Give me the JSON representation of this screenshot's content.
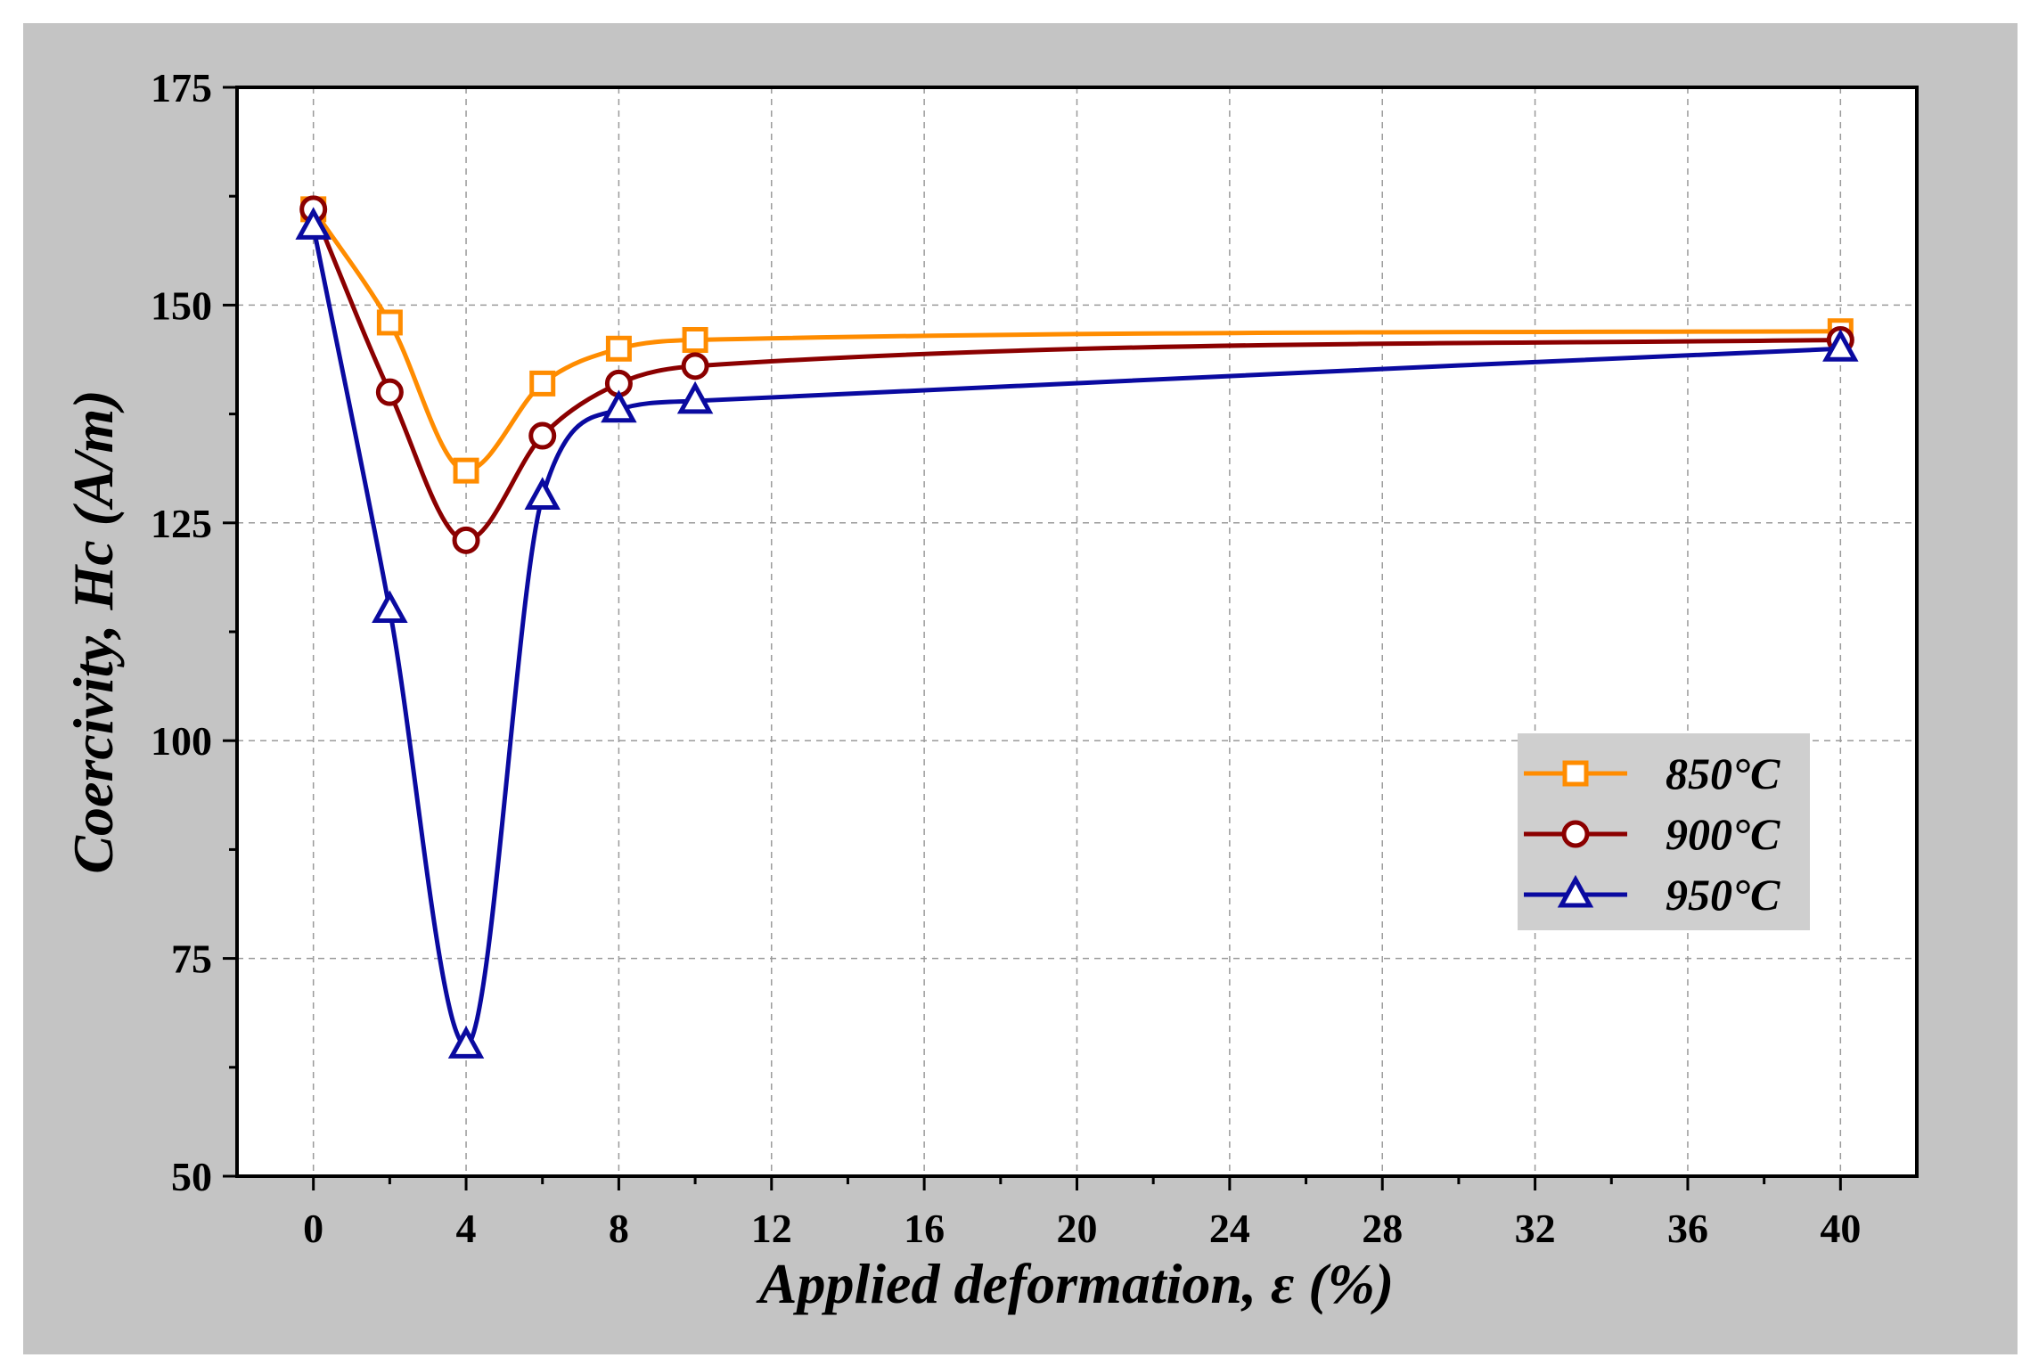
{
  "chart_data": {
    "type": "line",
    "title": "",
    "xlabel": "Applied deformation, ε (%)",
    "ylabel": "Coercivity, Hc (A/m)",
    "xlim": [
      -2,
      42
    ],
    "ylim": [
      50,
      175
    ],
    "xticks": [
      0,
      4,
      8,
      12,
      16,
      20,
      24,
      28,
      32,
      36,
      40
    ],
    "yticks": [
      50,
      75,
      100,
      125,
      150,
      175
    ],
    "grid": true,
    "legend_position": "center-right",
    "series": [
      {
        "name": "850°C",
        "color": "#ff8c00",
        "marker": "square",
        "x": [
          0,
          2,
          4,
          6,
          8,
          10,
          40
        ],
        "values": [
          161,
          148,
          131,
          141,
          145,
          146,
          147
        ]
      },
      {
        "name": "900°C",
        "color": "#8b0000",
        "marker": "circle",
        "x": [
          0,
          2,
          4,
          6,
          8,
          10,
          40
        ],
        "values": [
          161,
          140,
          123,
          135,
          141,
          143,
          146
        ]
      },
      {
        "name": "950°C",
        "color": "#0a0aa0",
        "marker": "triangle",
        "x": [
          0,
          2,
          4,
          6,
          8,
          10,
          40
        ],
        "values": [
          159,
          115,
          65,
          128,
          138,
          139,
          145
        ]
      }
    ]
  }
}
